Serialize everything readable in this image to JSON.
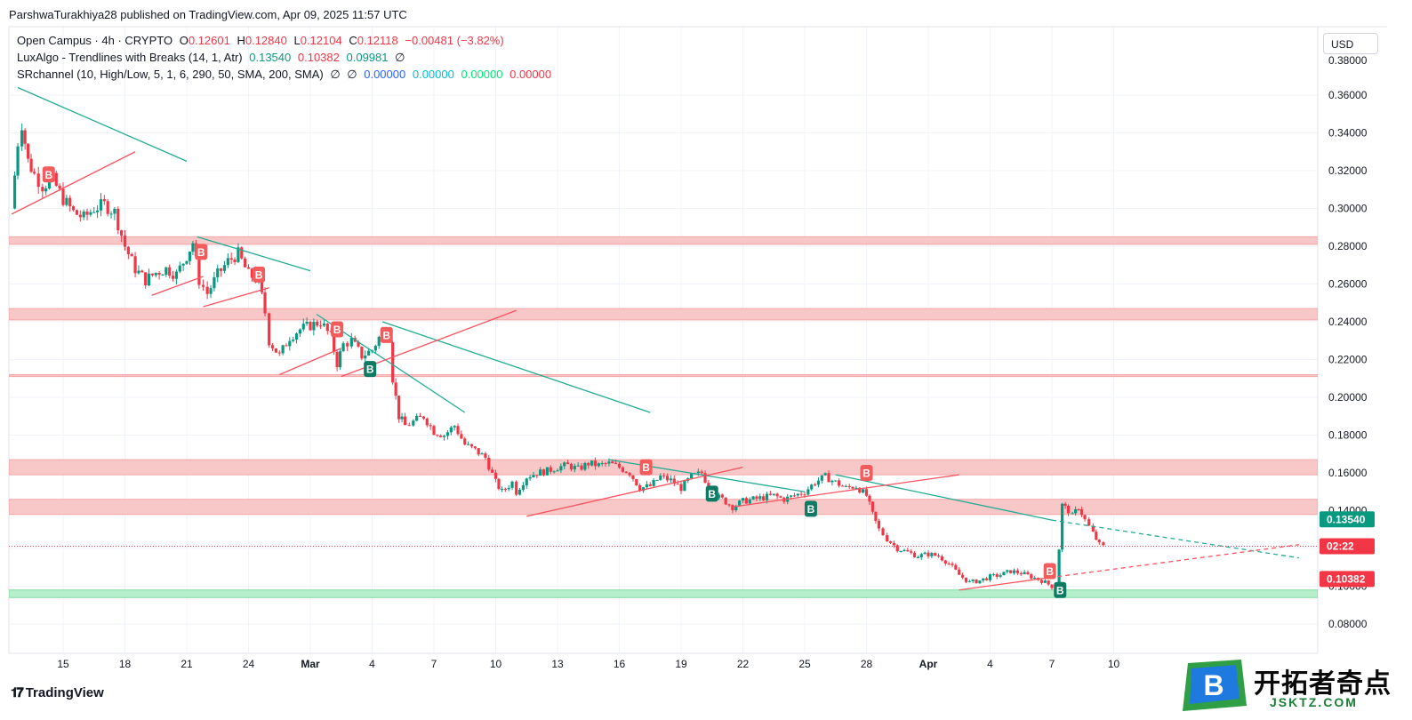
{
  "publisher": "ParshwaTurakhiya28 published on TradingView.com, Apr 09, 2025 11:57 UTC",
  "legend": {
    "symbol": "Open Campus · 4h · CRYPTO",
    "o_label": "O",
    "o": "0.12601",
    "h_label": "H",
    "h": "0.12840",
    "l_label": "L",
    "l": "0.12104",
    "c_label": "C",
    "c": "0.12118",
    "change": "−0.00481 (−3.82%)",
    "ind1_name": "LuxAlgo - Trendlines with Breaks (14, 1, Atr)",
    "ind1_v1": "0.13540",
    "ind1_v2": "0.10382",
    "ind1_v3": "0.09981",
    "ind1_v4": "∅",
    "ind2_name": "SRchannel (10, High/Low, 5, 1, 6, 290, 50, SMA, 200, SMA)",
    "ind2_v1": "∅",
    "ind2_v2": "∅",
    "ind2_v3": "0.00000",
    "ind2_v4": "0.00000",
    "ind2_v5": "0.00000",
    "ind2_v6": "0.00000"
  },
  "currency_button": "USD",
  "tradingview_logo": "TradingView",
  "brand": {
    "cn": "开拓者奇点",
    "en": "JSKTZ.COM",
    "logo_letter": "B"
  },
  "colors": {
    "up": "#089981",
    "down": "#f23645",
    "trend_down": "#22ab94",
    "trend_up": "#f7525f",
    "zone_red": "#f8c8c8",
    "zone_green": "#b7efcd",
    "grid": "#f0f3fa",
    "axis_text": "#131722"
  },
  "chart_data": {
    "type": "candlestick",
    "interval": "4h",
    "ylim": [
      0.07,
      0.38
    ],
    "y_ticks": [
      0.08,
      0.1,
      0.12,
      0.14,
      0.16,
      0.18,
      0.2,
      0.22,
      0.24,
      0.26,
      0.28,
      0.3,
      0.32,
      0.34,
      0.36
    ],
    "y_tick_labels": [
      "0.08000",
      "0.10000",
      "0.12000",
      "0.14000",
      "0.16000",
      "0.18000",
      "0.20000",
      "0.22000",
      "0.24000",
      "0.26000",
      "0.28000",
      "0.30000",
      "0.32000",
      "0.34000",
      "0.36000"
    ],
    "x_ticks": [
      {
        "day": 15,
        "label": "15"
      },
      {
        "day": 18,
        "label": "18"
      },
      {
        "day": 21,
        "label": "21"
      },
      {
        "day": 24,
        "label": "24"
      },
      {
        "day": 27,
        "label": "Mar",
        "bold": true
      },
      {
        "day": 30,
        "label": "4"
      },
      {
        "day": 33,
        "label": "7"
      },
      {
        "day": 36,
        "label": "10"
      },
      {
        "day": 39,
        "label": "13"
      },
      {
        "day": 42,
        "label": "16"
      },
      {
        "day": 45,
        "label": "19"
      },
      {
        "day": 48,
        "label": "22"
      },
      {
        "day": 51,
        "label": "25"
      },
      {
        "day": 54,
        "label": "28"
      },
      {
        "day": 57,
        "label": "Apr",
        "bold": true
      },
      {
        "day": 60,
        "label": "4"
      },
      {
        "day": 63,
        "label": "7"
      },
      {
        "day": 66,
        "label": "10"
      }
    ],
    "x_range_days": [
      12.4,
      75.2
    ],
    "price_path": [
      [
        12.5,
        0.3
      ],
      [
        12.8,
        0.335
      ],
      [
        13.0,
        0.345
      ],
      [
        13.3,
        0.325
      ],
      [
        13.6,
        0.318
      ],
      [
        14.0,
        0.312
      ],
      [
        14.5,
        0.315
      ],
      [
        15.0,
        0.305
      ],
      [
        15.5,
        0.298
      ],
      [
        16.0,
        0.295
      ],
      [
        16.5,
        0.3
      ],
      [
        17.0,
        0.302
      ],
      [
        17.5,
        0.298
      ],
      [
        18.0,
        0.28
      ],
      [
        18.5,
        0.268
      ],
      [
        19.0,
        0.262
      ],
      [
        19.5,
        0.266
      ],
      [
        20.0,
        0.268
      ],
      [
        20.5,
        0.265
      ],
      [
        21.0,
        0.275
      ],
      [
        21.3,
        0.282
      ],
      [
        21.6,
        0.262
      ],
      [
        22.0,
        0.255
      ],
      [
        22.5,
        0.265
      ],
      [
        23.0,
        0.272
      ],
      [
        23.5,
        0.276
      ],
      [
        24.0,
        0.265
      ],
      [
        24.5,
        0.262
      ],
      [
        24.8,
        0.245
      ],
      [
        25.0,
        0.23
      ],
      [
        25.5,
        0.222
      ],
      [
        26.0,
        0.232
      ],
      [
        26.5,
        0.236
      ],
      [
        27.0,
        0.238
      ],
      [
        27.5,
        0.24
      ],
      [
        28.0,
        0.232
      ],
      [
        28.3,
        0.218
      ],
      [
        28.6,
        0.228
      ],
      [
        29.0,
        0.23
      ],
      [
        29.5,
        0.222
      ],
      [
        30.0,
        0.225
      ],
      [
        30.5,
        0.235
      ],
      [
        30.8,
        0.232
      ],
      [
        31.0,
        0.21
      ],
      [
        31.3,
        0.19
      ],
      [
        31.6,
        0.185
      ],
      [
        32.0,
        0.187
      ],
      [
        32.5,
        0.19
      ],
      [
        33.0,
        0.182
      ],
      [
        33.5,
        0.18
      ],
      [
        34.0,
        0.185
      ],
      [
        34.5,
        0.175
      ],
      [
        35.0,
        0.172
      ],
      [
        35.5,
        0.168
      ],
      [
        36.0,
        0.155
      ],
      [
        36.3,
        0.15
      ],
      [
        36.8,
        0.155
      ],
      [
        37.0,
        0.15
      ],
      [
        37.5,
        0.158
      ],
      [
        38.0,
        0.16
      ],
      [
        38.5,
        0.161
      ],
      [
        39.0,
        0.163
      ],
      [
        39.5,
        0.164
      ],
      [
        40.0,
        0.162
      ],
      [
        40.5,
        0.165
      ],
      [
        41.0,
        0.164
      ],
      [
        41.5,
        0.165
      ],
      [
        42.0,
        0.163
      ],
      [
        42.5,
        0.16
      ],
      [
        43.0,
        0.152
      ],
      [
        43.5,
        0.153
      ],
      [
        44.0,
        0.158
      ],
      [
        44.5,
        0.156
      ],
      [
        45.0,
        0.152
      ],
      [
        45.5,
        0.158
      ],
      [
        46.0,
        0.16
      ],
      [
        46.5,
        0.149
      ],
      [
        47.0,
        0.146
      ],
      [
        47.5,
        0.142
      ],
      [
        48.0,
        0.145
      ],
      [
        48.5,
        0.146
      ],
      [
        49.0,
        0.147
      ],
      [
        49.5,
        0.148
      ],
      [
        50.0,
        0.146
      ],
      [
        50.5,
        0.148
      ],
      [
        51.0,
        0.15
      ],
      [
        51.5,
        0.155
      ],
      [
        52.0,
        0.158
      ],
      [
        52.5,
        0.155
      ],
      [
        53.0,
        0.152
      ],
      [
        53.5,
        0.153
      ],
      [
        54.0,
        0.148
      ],
      [
        54.3,
        0.138
      ],
      [
        54.6,
        0.13
      ],
      [
        55.0,
        0.125
      ],
      [
        55.5,
        0.12
      ],
      [
        56.0,
        0.118
      ],
      [
        56.5,
        0.116
      ],
      [
        57.0,
        0.117
      ],
      [
        57.5,
        0.116
      ],
      [
        58.0,
        0.112
      ],
      [
        58.5,
        0.106
      ],
      [
        59.0,
        0.102
      ],
      [
        59.5,
        0.103
      ],
      [
        60.0,
        0.105
      ],
      [
        60.5,
        0.106
      ],
      [
        61.0,
        0.108
      ],
      [
        61.5,
        0.107
      ],
      [
        62.0,
        0.105
      ],
      [
        62.5,
        0.103
      ],
      [
        63.0,
        0.1
      ],
      [
        63.2,
        0.097
      ],
      [
        63.5,
        0.143
      ],
      [
        63.8,
        0.14
      ],
      [
        64.0,
        0.137
      ],
      [
        64.3,
        0.142
      ],
      [
        64.6,
        0.135
      ],
      [
        65.0,
        0.128
      ],
      [
        65.3,
        0.122
      ],
      [
        65.5,
        0.121
      ]
    ],
    "sr_zones": [
      {
        "low": 0.281,
        "high": 0.285,
        "color": "red"
      },
      {
        "low": 0.241,
        "high": 0.247,
        "color": "red"
      },
      {
        "low": 0.211,
        "high": 0.212,
        "color": "red"
      },
      {
        "low": 0.159,
        "high": 0.167,
        "color": "red"
      },
      {
        "low": 0.138,
        "high": 0.146,
        "color": "red"
      },
      {
        "low": 0.094,
        "high": 0.098,
        "color": "green"
      }
    ],
    "trendlines_down": [
      {
        "x1": 12.8,
        "y1": 0.364,
        "x2": 21.0,
        "y2": 0.325
      },
      {
        "x1": 21.5,
        "y1": 0.285,
        "x2": 27.0,
        "y2": 0.267
      },
      {
        "x1": 27.3,
        "y1": 0.244,
        "x2": 34.5,
        "y2": 0.192
      },
      {
        "x1": 30.5,
        "y1": 0.24,
        "x2": 43.5,
        "y2": 0.192
      },
      {
        "x1": 41.5,
        "y1": 0.167,
        "x2": 51.0,
        "y2": 0.15
      },
      {
        "x1": 52.5,
        "y1": 0.159,
        "x2": 63.0,
        "y2": 0.135
      },
      {
        "x1": 63.0,
        "y1": 0.135,
        "x2": 75.0,
        "y2": 0.115,
        "dashed": true
      }
    ],
    "trendlines_up": [
      {
        "x1": 12.5,
        "y1": 0.297,
        "x2": 18.5,
        "y2": 0.33
      },
      {
        "x1": 19.3,
        "y1": 0.254,
        "x2": 21.8,
        "y2": 0.264
      },
      {
        "x1": 21.8,
        "y1": 0.248,
        "x2": 25.0,
        "y2": 0.258
      },
      {
        "x1": 25.5,
        "y1": 0.212,
        "x2": 28.5,
        "y2": 0.226
      },
      {
        "x1": 28.5,
        "y1": 0.211,
        "x2": 37.0,
        "y2": 0.246
      },
      {
        "x1": 37.5,
        "y1": 0.137,
        "x2": 48.0,
        "y2": 0.163
      },
      {
        "x1": 47.5,
        "y1": 0.142,
        "x2": 58.5,
        "y2": 0.159
      },
      {
        "x1": 58.5,
        "y1": 0.098,
        "x2": 62.5,
        "y2": 0.104
      },
      {
        "x1": 62.5,
        "y1": 0.104,
        "x2": 75.0,
        "y2": 0.122,
        "dashed": true
      }
    ],
    "break_labels": [
      {
        "day": 14.3,
        "price": 0.318,
        "type": "down",
        "text": "B"
      },
      {
        "day": 21.7,
        "price": 0.277,
        "type": "down",
        "text": "B"
      },
      {
        "day": 24.5,
        "price": 0.265,
        "type": "down",
        "text": "B"
      },
      {
        "day": 28.3,
        "price": 0.236,
        "type": "down",
        "text": "B"
      },
      {
        "day": 29.9,
        "price": 0.215,
        "type": "up",
        "text": "B"
      },
      {
        "day": 30.7,
        "price": 0.233,
        "type": "down",
        "text": "B"
      },
      {
        "day": 43.3,
        "price": 0.163,
        "type": "down",
        "text": "B"
      },
      {
        "day": 46.5,
        "price": 0.149,
        "type": "up",
        "text": "B"
      },
      {
        "day": 51.3,
        "price": 0.141,
        "type": "up",
        "text": "B"
      },
      {
        "day": 54.0,
        "price": 0.16,
        "type": "down",
        "text": "B"
      },
      {
        "day": 62.9,
        "price": 0.108,
        "type": "down",
        "text": "B"
      },
      {
        "day": 63.4,
        "price": 0.098,
        "type": "up",
        "text": "B"
      }
    ],
    "current_price_line": 0.12118,
    "price_tags": [
      {
        "price": 0.1354,
        "label": "0.13540",
        "color": "#089981"
      },
      {
        "price": 0.1212,
        "label": "02:22",
        "color": "#f23645"
      },
      {
        "price": 0.10382,
        "label": "0.10382",
        "color": "#f23645"
      }
    ],
    "y_axis_partial_top": "0.38000"
  }
}
